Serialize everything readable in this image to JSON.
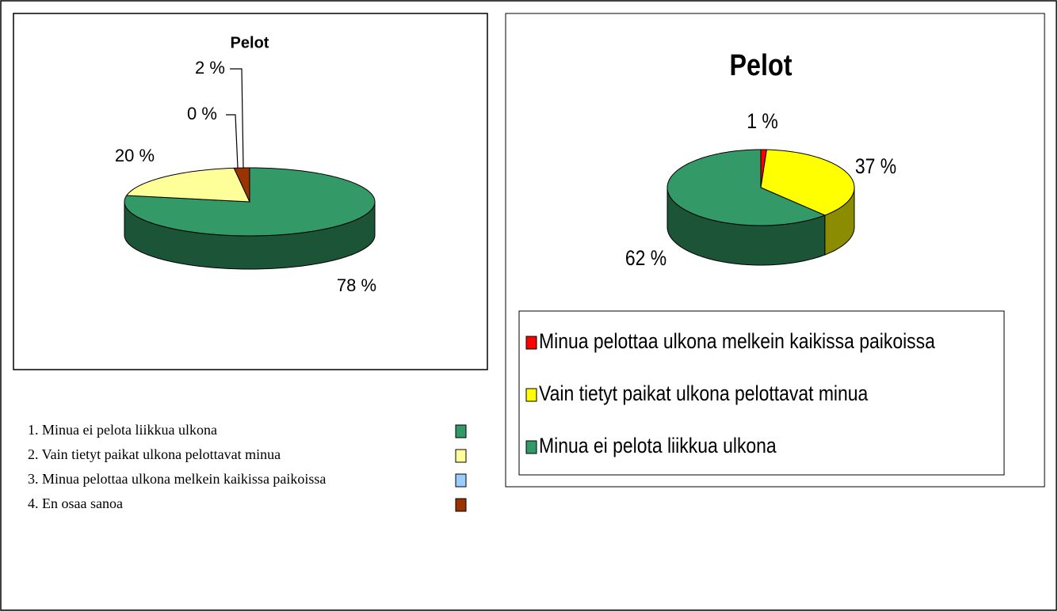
{
  "chart_data": [
    {
      "type": "pie",
      "title": "Pelot",
      "categories": [
        "1. Minua ei pelota liikkua ulkona",
        "2. Vain tietyt paikat ulkona pelottavat minua",
        "3. Minua pelottaa ulkona melkein kaikissa paikoissa",
        "4. En osaa sanoa"
      ],
      "values": [
        78,
        20,
        0,
        2
      ],
      "value_labels": [
        "78 %",
        "20 %",
        "0 %",
        "2 %"
      ],
      "colors": [
        "#339966",
        "#ffff99",
        "#99ccff",
        "#993300"
      ]
    },
    {
      "type": "pie",
      "title": "Pelot",
      "categories": [
        "Minua pelottaa ulkona melkein kaikissa paikoissa",
        "Vain tietyt paikat ulkona pelottavat minua",
        "Minua ei pelota liikkua ulkona"
      ],
      "values": [
        1,
        37,
        62
      ],
      "value_labels": [
        "1 %",
        "37 %",
        "62 %"
      ],
      "colors": [
        "#ff0000",
        "#ffff00",
        "#339966"
      ]
    }
  ]
}
